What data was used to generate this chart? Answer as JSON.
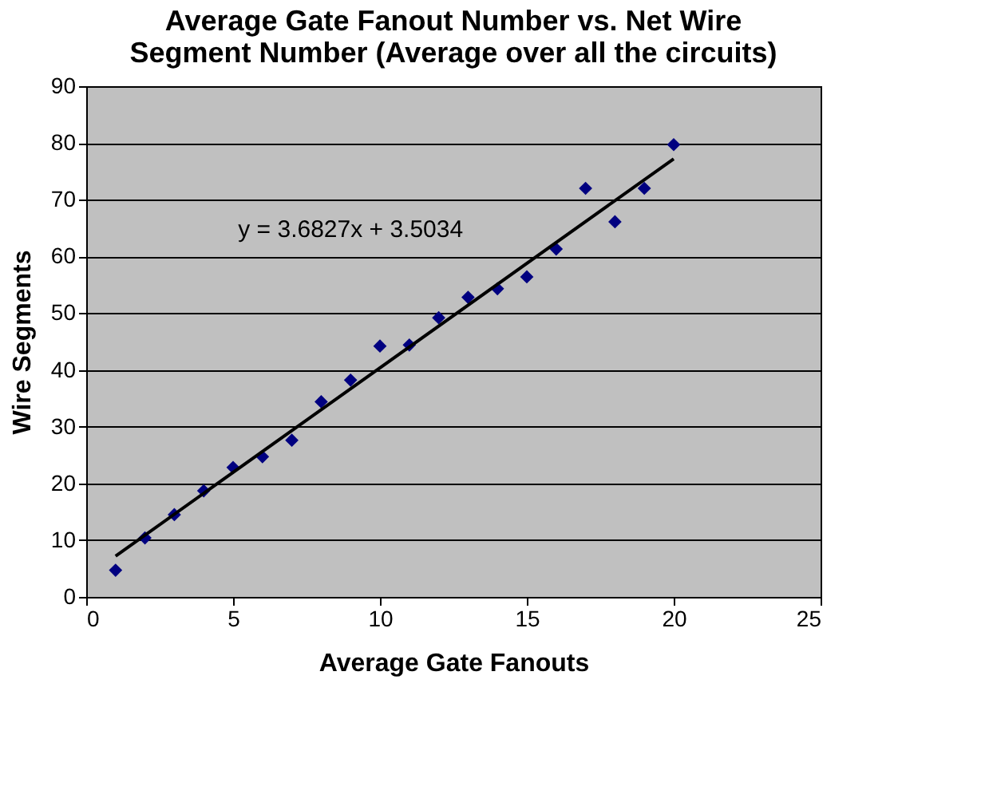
{
  "chart_data": {
    "type": "scatter",
    "title": "Average Gate Fanout Number vs. Net Wire Segment Number (Average over all the circuits)",
    "xlabel": "Average Gate Fanouts",
    "ylabel": "Wire Segments",
    "x": [
      1,
      2,
      3,
      4,
      5,
      6,
      7,
      8,
      9,
      10,
      11,
      12,
      13,
      14,
      15,
      16,
      17,
      18,
      19,
      20
    ],
    "series": [
      {
        "type": "scatter",
        "color": "#000080",
        "marker": "diamond",
        "values": [
          4.7,
          10.4,
          14.5,
          18.7,
          22.8,
          24.7,
          27.6,
          34.4,
          38.2,
          44.2,
          44.4,
          49.2,
          52.8,
          54.3,
          56.4,
          61.3,
          72.0,
          66.1,
          72.0,
          79.7
        ]
      },
      {
        "type": "line",
        "color": "#000000",
        "line_style": "solid",
        "x": [
          1,
          20
        ],
        "values": [
          7.2,
          77.2
        ]
      }
    ],
    "annotations": [
      "y = 3.6827x + 3.5034"
    ],
    "xlim": [
      0,
      25
    ],
    "xticks": [
      0,
      5,
      10,
      15,
      20,
      25
    ],
    "ylim": [
      0,
      90
    ],
    "yticks": [
      0,
      10,
      20,
      30,
      40,
      50,
      60,
      70,
      80,
      90
    ],
    "grid": "y"
  }
}
